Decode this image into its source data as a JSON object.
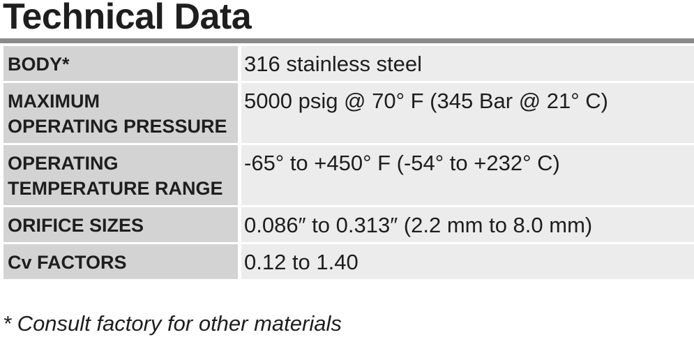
{
  "header": {
    "title": "Technical Data"
  },
  "table": {
    "rows": [
      {
        "label": [
          "BODY*"
        ],
        "value": "316 stainless steel"
      },
      {
        "label": [
          "MAXIMUM",
          "OPERATING PRESSURE"
        ],
        "value": "5000 psig @ 70° F (345 Bar @ 21° C)"
      },
      {
        "label": [
          "OPERATING",
          "TEMPERATURE RANGE"
        ],
        "value": "-65° to +450° F (-54° to +232° C)"
      },
      {
        "label": [
          "ORIFICE SIZES"
        ],
        "value": "0.086″ to 0.313″ (2.2 mm to 8.0 mm)"
      },
      {
        "label": [
          "Cv FACTORS"
        ],
        "value": "0.12 to 1.40"
      }
    ]
  },
  "footnote": "* Consult factory for other materials"
}
